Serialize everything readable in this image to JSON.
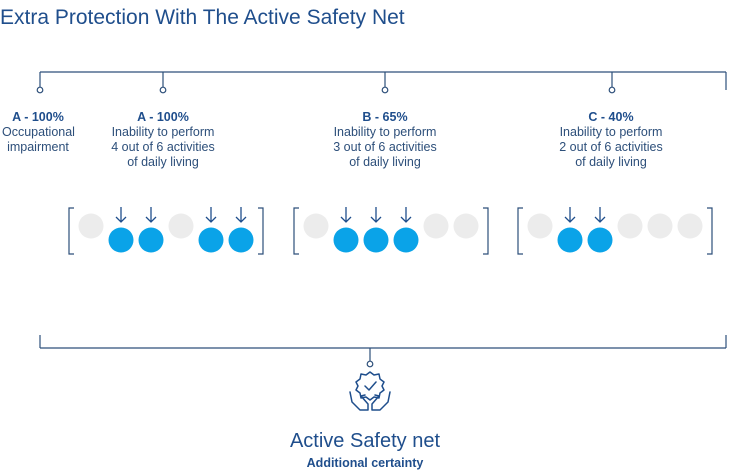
{
  "title": "Extra Protection With The Active Safety Net",
  "groups": [
    {
      "head": "A - 100%",
      "lines": [
        "Occupational",
        "impairment"
      ]
    },
    {
      "head": "A - 100%",
      "lines": [
        "Inability to perform",
        "4 out of 6 activities",
        "of daily living"
      ],
      "active": [
        false,
        true,
        true,
        false,
        true,
        true
      ]
    },
    {
      "head": "B - 65%",
      "lines": [
        "Inability to perform",
        "3 out of 6 activities",
        "of daily living"
      ],
      "active": [
        false,
        true,
        true,
        true,
        false,
        false
      ]
    },
    {
      "head": "C - 40%",
      "lines": [
        "Inability to perform",
        "2 out of 6 activities",
        "of daily living"
      ],
      "active": [
        false,
        true,
        true,
        false,
        false,
        false
      ]
    }
  ],
  "footer": {
    "title": "Active Safety net",
    "subtitle": "Additional certainty",
    "icon": "hands-check-icon"
  },
  "colors": {
    "active": "#0aa3e8",
    "inactive": "#ececec",
    "line": "#2d4f7a",
    "arrow": "#1f4e8c"
  }
}
